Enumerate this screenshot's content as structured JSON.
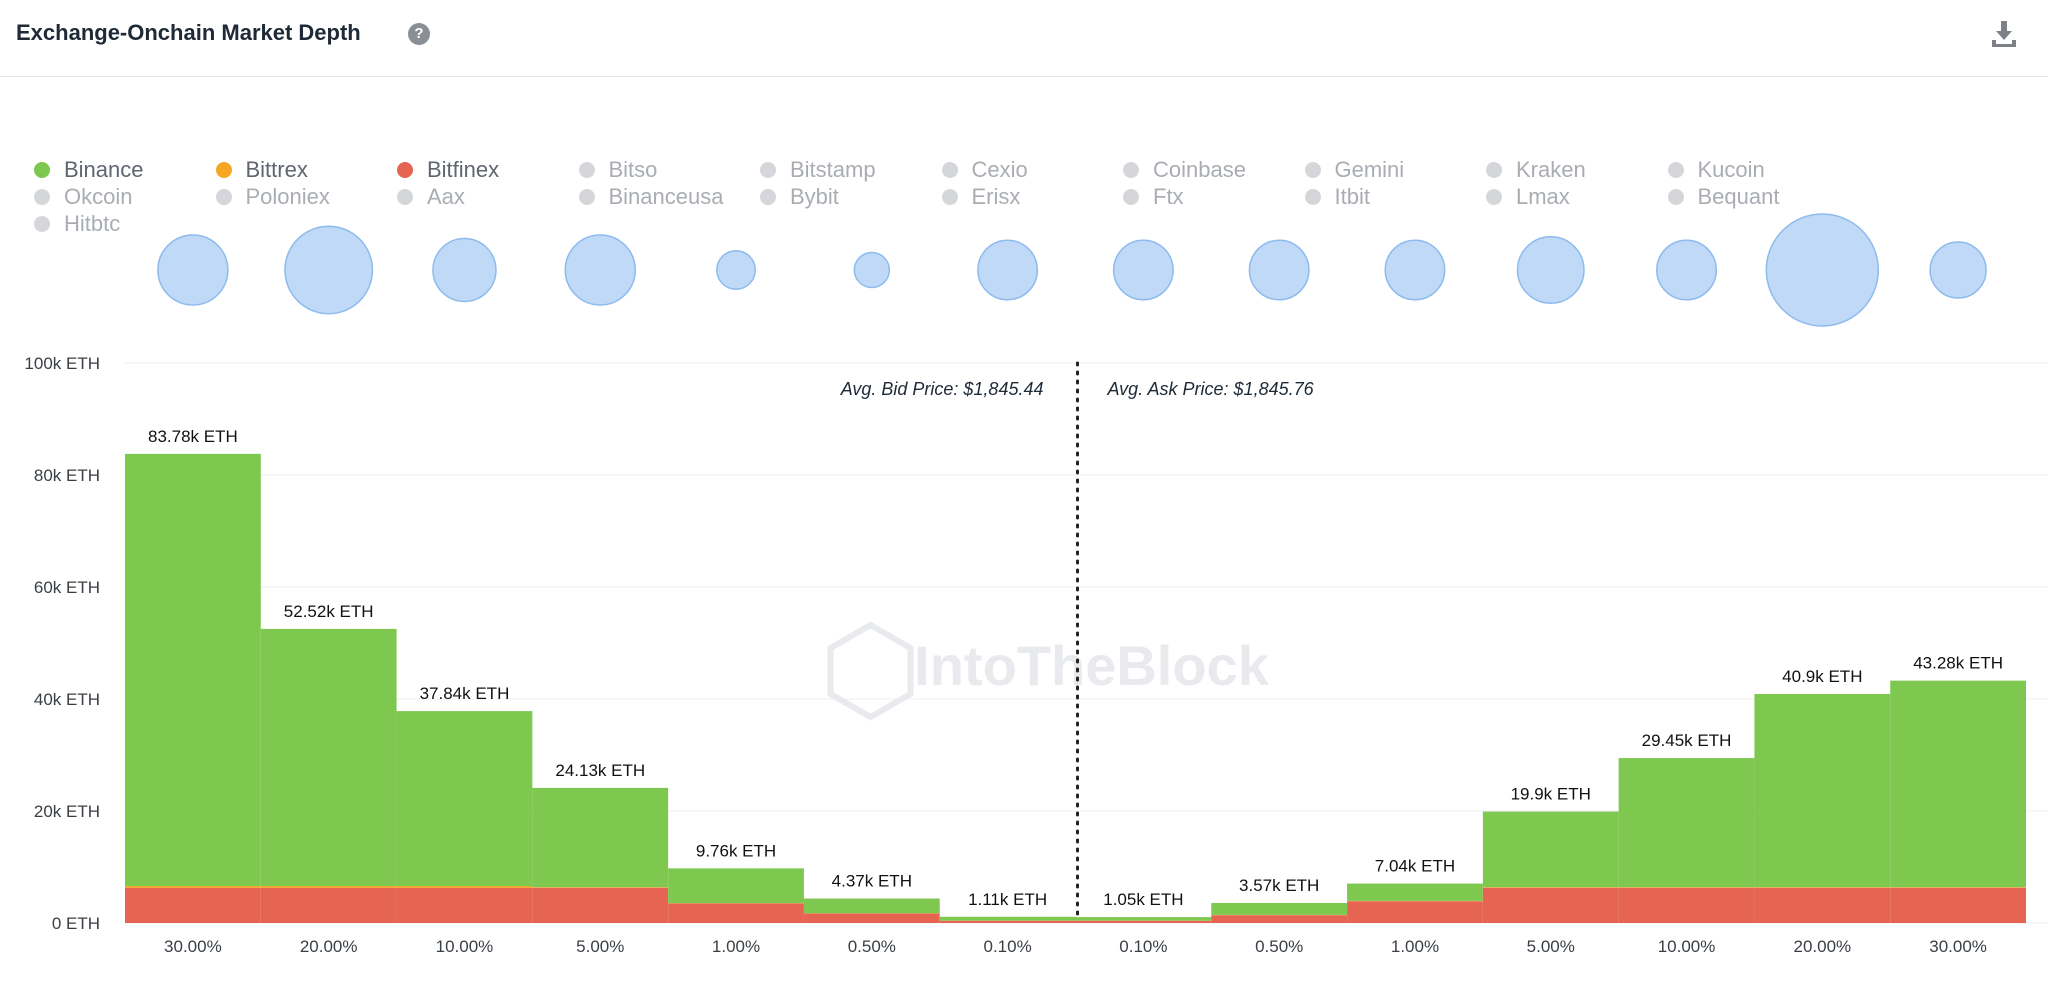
{
  "header": {
    "title": "Exchange-Onchain Market Depth",
    "help_icon": "question-circle-icon",
    "download_icon": "download-icon"
  },
  "legend": [
    {
      "name": "Binance",
      "color": "#7ec850",
      "active": true
    },
    {
      "name": "Bittrex",
      "color": "#f5a623",
      "active": true
    },
    {
      "name": "Bitfinex",
      "color": "#e66552",
      "active": true
    },
    {
      "name": "Bitso",
      "active": false
    },
    {
      "name": "Bitstamp",
      "active": false
    },
    {
      "name": "Cexio",
      "active": false
    },
    {
      "name": "Coinbase",
      "active": false
    },
    {
      "name": "Gemini",
      "active": false
    },
    {
      "name": "Kraken",
      "active": false
    },
    {
      "name": "Kucoin",
      "active": false
    },
    {
      "name": "Okcoin",
      "active": false
    },
    {
      "name": "Poloniex",
      "active": false
    },
    {
      "name": "Aax",
      "active": false
    },
    {
      "name": "Binanceusa",
      "active": false
    },
    {
      "name": "Bybit",
      "active": false
    },
    {
      "name": "Erisx",
      "active": false
    },
    {
      "name": "Ftx",
      "active": false
    },
    {
      "name": "Itbit",
      "active": false
    },
    {
      "name": "Lmax",
      "active": false
    },
    {
      "name": "Bequant",
      "active": false
    },
    {
      "name": "Hitbtc",
      "active": false
    }
  ],
  "watermark": "IntoTheBlock",
  "chart_data": {
    "type": "bar",
    "categories": [
      "30.00%",
      "20.00%",
      "10.00%",
      "5.00%",
      "1.00%",
      "0.50%",
      "0.10%",
      "0.10%",
      "0.50%",
      "1.00%",
      "5.00%",
      "10.00%",
      "20.00%",
      "30.00%"
    ],
    "side": [
      "bid",
      "bid",
      "bid",
      "bid",
      "bid",
      "bid",
      "bid",
      "ask",
      "ask",
      "ask",
      "ask",
      "ask",
      "ask",
      "ask"
    ],
    "totals": [
      83.78,
      52.52,
      37.84,
      24.13,
      9.76,
      4.37,
      1.11,
      1.05,
      3.57,
      7.04,
      19.9,
      29.45,
      40.9,
      43.28
    ],
    "total_labels": [
      "83.78k ETH",
      "52.52k ETH",
      "37.84k ETH",
      "24.13k ETH",
      "9.76k ETH",
      "4.37k ETH",
      "1.11k ETH",
      "1.05k ETH",
      "3.57k ETH",
      "7.04k ETH",
      "19.9k ETH",
      "29.45k ETH",
      "40.9k ETH",
      "43.28k ETH"
    ],
    "series": [
      {
        "name": "Bitfinex",
        "color": "#e66552",
        "values": [
          6.3,
          6.3,
          6.3,
          6.3,
          3.5,
          1.7,
          0.4,
          0.4,
          1.4,
          3.9,
          6.3,
          6.3,
          6.3,
          6.3
        ]
      },
      {
        "name": "Bittrex",
        "color": "#f5a623",
        "values": [
          0.3,
          0.3,
          0.3,
          0.1,
          0.05,
          0.05,
          0.02,
          0.02,
          0.05,
          0.05,
          0.1,
          0.1,
          0.1,
          0.1
        ]
      },
      {
        "name": "Binance",
        "color": "#7ec850",
        "values": [
          77.18,
          45.92,
          31.24,
          17.73,
          6.21,
          2.62,
          0.69,
          0.63,
          2.12,
          3.09,
          13.5,
          23.05,
          34.5,
          36.88
        ]
      }
    ],
    "bubbles": [
      1.0,
      1.25,
      0.9,
      1.0,
      0.55,
      0.5,
      0.85,
      0.85,
      0.85,
      0.85,
      0.95,
      0.85,
      1.6,
      0.8
    ],
    "bubble_color": "#bfd9f6",
    "y_ticks": [
      "0 ETH",
      "20k ETH",
      "40k ETH",
      "60k ETH",
      "80k ETH",
      "100k ETH"
    ],
    "ylim": [
      0,
      100
    ],
    "annotations": {
      "bid": "Avg. Bid Price: $1,845.44",
      "ask": "Avg. Ask Price: $1,845.76"
    }
  }
}
